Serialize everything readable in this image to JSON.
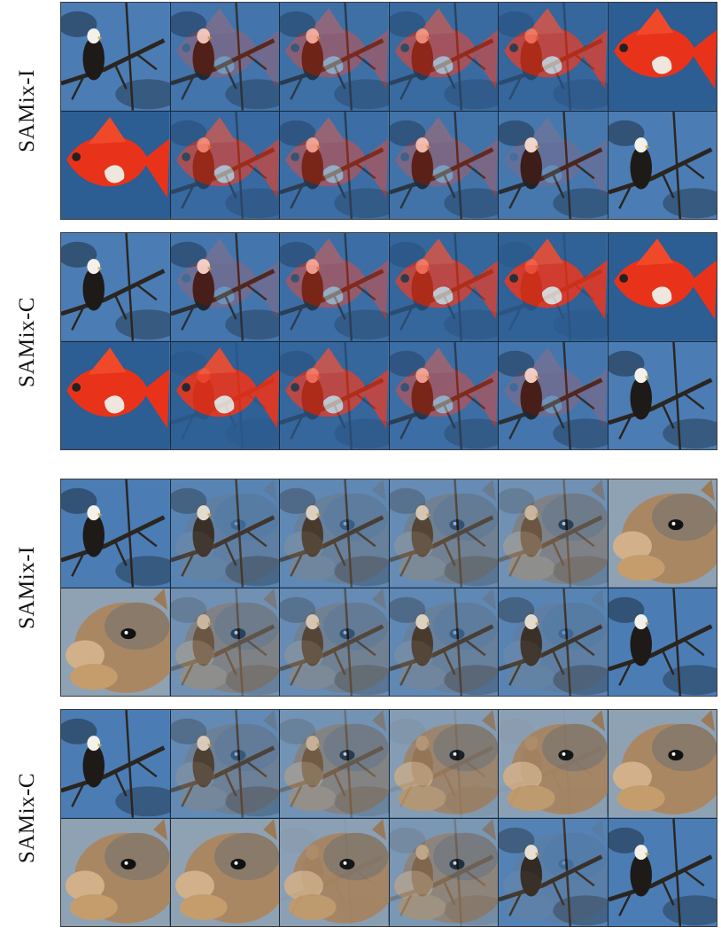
{
  "sections": [
    {
      "label": "SAMix-I",
      "target": "goldfish"
    },
    {
      "label": "SAMix-C",
      "target": "goldfish"
    },
    {
      "label": "SAMix-I",
      "target": "squirrel"
    },
    {
      "label": "SAMix-C",
      "target": "squirrel"
    }
  ],
  "colors": {
    "sky": "#4b7db4",
    "goldfish": "#e8331a",
    "goldfish_white": "#efe6de",
    "squirrel": "#a98763",
    "branch": "#2b2520",
    "eagle_body": "#1e1a18",
    "eagle_head": "#f3f1ea"
  },
  "grids": [
    {
      "mix": [
        0,
        0.25,
        0.4,
        0.55,
        0.7,
        1,
        1,
        0.6,
        0.45,
        0.3,
        0.15,
        0
      ]
    },
    {
      "mix": [
        0,
        0.2,
        0.45,
        0.7,
        0.85,
        1,
        1,
        0.9,
        0.7,
        0.45,
        0.2,
        0
      ]
    },
    {
      "mix": [
        0,
        0.2,
        0.3,
        0.4,
        0.55,
        1,
        1,
        0.55,
        0.4,
        0.3,
        0.2,
        0
      ]
    },
    {
      "mix": [
        0,
        0.35,
        0.6,
        0.85,
        0.95,
        1,
        1,
        1,
        0.95,
        0.7,
        0.15,
        0
      ]
    }
  ]
}
